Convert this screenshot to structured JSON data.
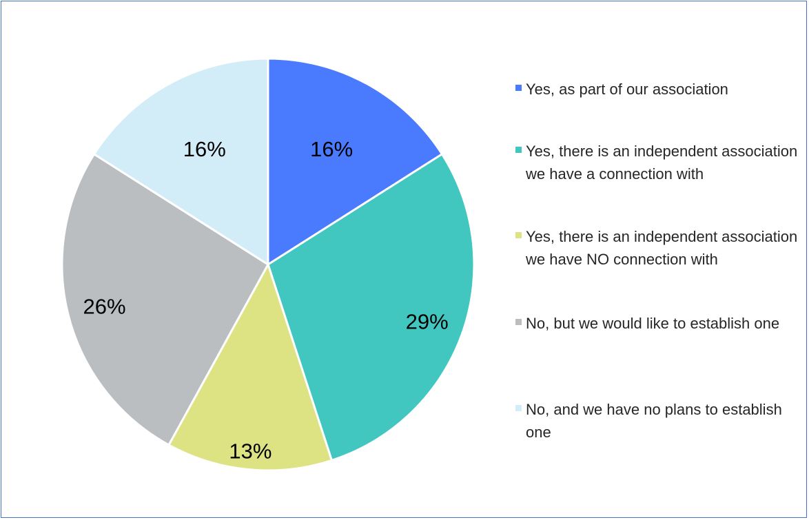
{
  "chart_data": {
    "type": "pie",
    "slices": [
      {
        "label": "Yes, as part of our association",
        "value": 16,
        "display": "16%",
        "color": "#4a7bfe"
      },
      {
        "label": "Yes, there is an independent association we have a connection with",
        "value": 29,
        "display": "29%",
        "color": "#42c7c0"
      },
      {
        "label": "Yes, there is an independent association we have NO connection with",
        "value": 13,
        "display": "13%",
        "color": "#dde283"
      },
      {
        "label": "No, but we would like to establish one",
        "value": 26,
        "display": "26%",
        "color": "#bbbec1"
      },
      {
        "label": "No, and we have no plans to establish one",
        "value": 16,
        "display": "16%",
        "color": "#d2ecf8"
      }
    ],
    "legend_position": "right"
  }
}
